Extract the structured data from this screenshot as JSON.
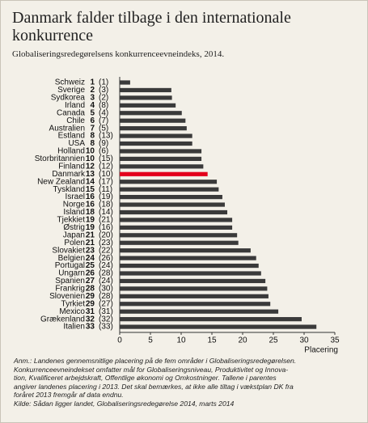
{
  "chart_data": {
    "type": "bar",
    "orientation": "horizontal",
    "title": "Danmark falder tilbage i den internationale konkurrence",
    "subtitle": "Globaliseringsredegørelsens konkurrenceevneindeks, 2014.",
    "xlabel": "Placering",
    "categories": [
      "Schweiz",
      "Sverige",
      "Sydkorea",
      "Irland",
      "Canada",
      "Chile",
      "Australien",
      "Estland",
      "USA",
      "Holland",
      "Storbritannien",
      "Finland",
      "Danmark",
      "New Zealand",
      "Tyskland",
      "Israel",
      "Norge",
      "Island",
      "Tjekkiet",
      "Østrig",
      "Japan",
      "Polen",
      "Slovakiet",
      "Belgien",
      "Portugal",
      "Ungarn",
      "Spanien",
      "Frankrig",
      "Slovenien",
      "Tyrkiet",
      "Mexico",
      "Grækenland",
      "Italien"
    ],
    "ranks": [
      1,
      2,
      3,
      4,
      5,
      6,
      7,
      8,
      8,
      10,
      10,
      12,
      13,
      14,
      15,
      16,
      16,
      18,
      19,
      19,
      21,
      21,
      23,
      24,
      25,
      26,
      27,
      28,
      29,
      29,
      31,
      32,
      33
    ],
    "previous_ranks": [
      "(1)",
      "(3)",
      "(2)",
      "(8)",
      "(4)",
      "(7)",
      "(5)",
      "(13)",
      "(9)",
      "(6)",
      "(15)",
      "(12)",
      "(10)",
      "(17)",
      "(11)",
      "(19)",
      "(18)",
      "(14)",
      "(21)",
      "(16)",
      "(20)",
      "(23)",
      "(22)",
      "(26)",
      "(24)",
      "(28)",
      "(24)",
      "(30)",
      "(28)",
      "(27)",
      "(31)",
      "(32)",
      "(33)"
    ],
    "values": [
      1.7,
      8.4,
      8.5,
      9.1,
      10.1,
      10.7,
      10.9,
      11.8,
      11.8,
      13.3,
      13.3,
      13.6,
      14.3,
      15.8,
      16.1,
      16.7,
      17.1,
      17.5,
      18.3,
      18.3,
      19.1,
      19.3,
      21.3,
      22.2,
      22.6,
      23,
      23.7,
      24,
      24.2,
      24.5,
      25.8,
      29.6,
      32
    ],
    "color": "#3a3a3a",
    "highlight": "Danmark",
    "highlight_color": "#e3001b",
    "xlim": [
      0,
      35
    ],
    "xticks": [
      0,
      5,
      10,
      15,
      20,
      25,
      30,
      35
    ],
    "notes": [
      "Anm.: Landenes gennemsnitlige placering på de fem områder i Globaliseringsredegørelsen.",
      "Konkurrenceevneindekset omfatter mål for Globaliseringsniveau, Produktivitet og Innova-",
      "tion, Kvalificeret arbejdskraft, Offentlige økonomi og Omkostninger. Tallene i parentes",
      "angiver landenes placering i 2013. Det skal bemærkes, at ikke alle tiltag i vækstplan DK fra",
      "foråret 2013 fremgår af data endnu."
    ],
    "source": "Kilde: Sådan ligger landet, Globaliseringsredegørelse 2014, marts 2014"
  }
}
